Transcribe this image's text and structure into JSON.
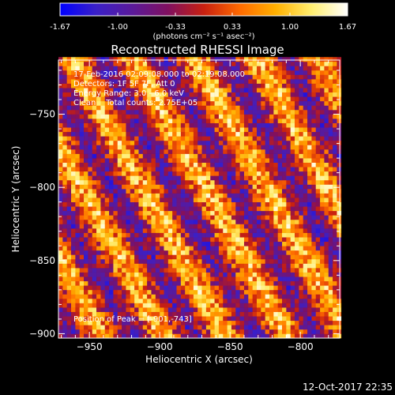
{
  "chart_data": {
    "type": "heatmap",
    "title": "Reconstructed RHESSI Image",
    "xlabel": "Heliocentric X (arcsec)",
    "ylabel": "Heliocentric Y (arcsec)",
    "xlim": [
      -972,
      -772
    ],
    "ylim": [
      -903,
      -713
    ],
    "x_ticks": [
      -950,
      -900,
      -850,
      -800
    ],
    "y_ticks": [
      -750,
      -800,
      -850,
      -900
    ],
    "colorbar": {
      "min": -1.67,
      "max": 1.67,
      "ticks": [
        "-1.67",
        "-1.00",
        "-0.33",
        "0.33",
        "1.00",
        "1.67"
      ],
      "unit_label": "(photons cm⁻² s⁻¹ asec⁻²)",
      "colormap": [
        "#0000ff",
        "#3a20c8",
        "#5a1a9a",
        "#801060",
        "#c82010",
        "#ff6a00",
        "#ffb000",
        "#ffee70",
        "#ffffff"
      ]
    },
    "annotations": [
      "17-Feb-2016 02:09:08.000 to 02:19:08.000",
      "Detectors: 1F 5F 7F, Att 0",
      "Energy Range: 3.0 - 6.0 keV",
      "Clean    Total counts: 2.75E+05",
      "Position of Peak = [-901,-743]"
    ],
    "peak_position": [
      -901,
      -743
    ],
    "pattern": {
      "description_values": "diagonal ridge pattern",
      "ridge_spacing_arcsec": 38,
      "ridge_direction_deg": -60
    }
  },
  "footer": {
    "timestamp": "12-Oct-2017 22:35"
  }
}
